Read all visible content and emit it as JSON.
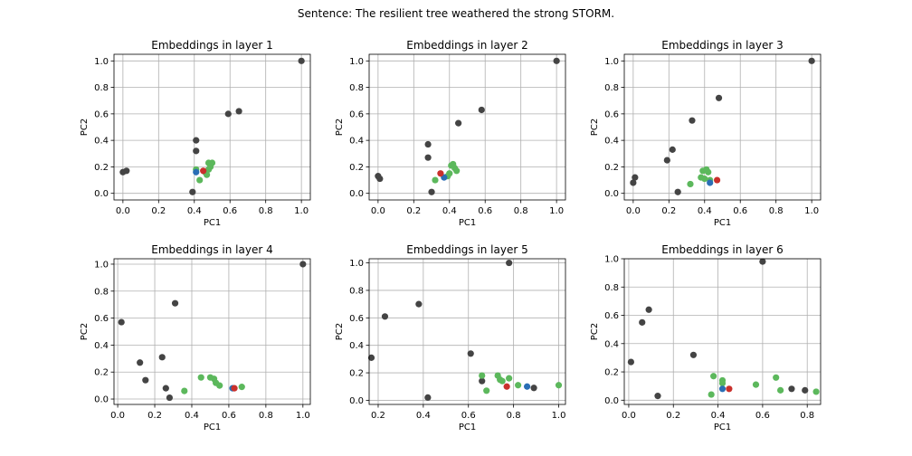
{
  "figure_title": "Sentence: The resilient tree weathered the strong STORM.",
  "colors": {
    "other": "#444444",
    "adjective": "#5cb85c",
    "focus": "#c9302c",
    "reference": "#2a6eb5"
  },
  "chart_data": [
    {
      "type": "scatter",
      "title": "Embeddings in layer 1",
      "xlabel": "PC1",
      "ylabel": "PC2",
      "xlim": [
        -0.05,
        1.05
      ],
      "ylim": [
        -0.05,
        1.05
      ],
      "xticks": [
        0.0,
        0.2,
        0.4,
        0.6,
        0.8,
        1.0
      ],
      "yticks": [
        0.0,
        0.2,
        0.4,
        0.6,
        0.8,
        1.0
      ],
      "grid": true,
      "series": [
        {
          "group": "other",
          "points": [
            [
              0.0,
              0.16
            ],
            [
              0.02,
              0.17
            ],
            [
              0.39,
              0.01
            ],
            [
              0.41,
              0.4
            ],
            [
              0.41,
              0.32
            ],
            [
              0.59,
              0.6
            ],
            [
              0.65,
              0.62
            ],
            [
              1.0,
              1.0
            ]
          ]
        },
        {
          "group": "adjective",
          "points": [
            [
              0.41,
              0.18
            ],
            [
              0.43,
              0.1
            ],
            [
              0.46,
              0.16
            ],
            [
              0.47,
              0.14
            ],
            [
              0.48,
              0.18
            ],
            [
              0.49,
              0.2
            ],
            [
              0.48,
              0.23
            ],
            [
              0.5,
              0.23
            ]
          ]
        },
        {
          "group": "reference",
          "points": [
            [
              0.41,
              0.16
            ]
          ]
        },
        {
          "group": "focus",
          "points": [
            [
              0.45,
              0.17
            ]
          ]
        }
      ]
    },
    {
      "type": "scatter",
      "title": "Embeddings in layer 2",
      "xlabel": "PC1",
      "ylabel": "PC2",
      "xlim": [
        -0.05,
        1.05
      ],
      "ylim": [
        -0.05,
        1.05
      ],
      "xticks": [
        0.0,
        0.2,
        0.4,
        0.6,
        0.8,
        1.0
      ],
      "yticks": [
        0.0,
        0.2,
        0.4,
        0.6,
        0.8,
        1.0
      ],
      "grid": true,
      "series": [
        {
          "group": "other",
          "points": [
            [
              0.0,
              0.13
            ],
            [
              0.01,
              0.11
            ],
            [
              0.28,
              0.27
            ],
            [
              0.28,
              0.37
            ],
            [
              0.3,
              0.01
            ],
            [
              0.45,
              0.53
            ],
            [
              0.58,
              0.63
            ],
            [
              1.0,
              1.0
            ]
          ]
        },
        {
          "group": "adjective",
          "points": [
            [
              0.32,
              0.1
            ],
            [
              0.39,
              0.13
            ],
            [
              0.4,
              0.15
            ],
            [
              0.41,
              0.21
            ],
            [
              0.42,
              0.22
            ],
            [
              0.43,
              0.19
            ],
            [
              0.44,
              0.17
            ]
          ]
        },
        {
          "group": "reference",
          "points": [
            [
              0.37,
              0.12
            ]
          ]
        },
        {
          "group": "focus",
          "points": [
            [
              0.35,
              0.15
            ]
          ]
        }
      ]
    },
    {
      "type": "scatter",
      "title": "Embeddings in layer 3",
      "xlabel": "PC1",
      "ylabel": "PC2",
      "xlim": [
        -0.05,
        1.05
      ],
      "ylim": [
        -0.05,
        1.05
      ],
      "xticks": [
        0.0,
        0.2,
        0.4,
        0.6,
        0.8,
        1.0
      ],
      "yticks": [
        0.0,
        0.2,
        0.4,
        0.6,
        0.8,
        1.0
      ],
      "grid": true,
      "series": [
        {
          "group": "other",
          "points": [
            [
              0.0,
              0.08
            ],
            [
              0.01,
              0.12
            ],
            [
              0.19,
              0.25
            ],
            [
              0.22,
              0.33
            ],
            [
              0.25,
              0.01
            ],
            [
              0.33,
              0.55
            ],
            [
              0.48,
              0.72
            ],
            [
              1.0,
              1.0
            ]
          ]
        },
        {
          "group": "adjective",
          "points": [
            [
              0.32,
              0.07
            ],
            [
              0.38,
              0.12
            ],
            [
              0.39,
              0.17
            ],
            [
              0.4,
              0.11
            ],
            [
              0.41,
              0.18
            ],
            [
              0.42,
              0.16
            ],
            [
              0.43,
              0.1
            ]
          ]
        },
        {
          "group": "reference",
          "points": [
            [
              0.43,
              0.08
            ]
          ]
        },
        {
          "group": "focus",
          "points": [
            [
              0.47,
              0.1
            ]
          ]
        }
      ]
    },
    {
      "type": "scatter",
      "title": "Embeddings in layer 4",
      "xlabel": "PC1",
      "ylabel": "PC2",
      "xlim": [
        -0.02,
        1.04
      ],
      "ylim": [
        -0.04,
        1.04
      ],
      "xticks": [
        0.0,
        0.2,
        0.4,
        0.6,
        0.8,
        1.0
      ],
      "yticks": [
        0.0,
        0.2,
        0.4,
        0.6,
        0.8,
        1.0
      ],
      "grid": true,
      "series": [
        {
          "group": "other",
          "points": [
            [
              0.02,
              0.57
            ],
            [
              0.12,
              0.27
            ],
            [
              0.15,
              0.14
            ],
            [
              0.24,
              0.31
            ],
            [
              0.26,
              0.08
            ],
            [
              0.28,
              0.01
            ],
            [
              0.31,
              0.71
            ],
            [
              1.0,
              1.0
            ]
          ]
        },
        {
          "group": "adjective",
          "points": [
            [
              0.36,
              0.06
            ],
            [
              0.45,
              0.16
            ],
            [
              0.5,
              0.16
            ],
            [
              0.52,
              0.15
            ],
            [
              0.53,
              0.12
            ],
            [
              0.55,
              0.1
            ],
            [
              0.67,
              0.09
            ]
          ]
        },
        {
          "group": "reference",
          "points": [
            [
              0.62,
              0.08
            ]
          ]
        },
        {
          "group": "focus",
          "points": [
            [
              0.63,
              0.08
            ]
          ]
        }
      ]
    },
    {
      "type": "scatter",
      "title": "Embeddings in layer 5",
      "xlabel": "PC1",
      "ylabel": "PC2",
      "xlim": [
        0.16,
        1.03
      ],
      "ylim": [
        -0.03,
        1.03
      ],
      "xticks": [
        0.2,
        0.4,
        0.6,
        0.8,
        1.0
      ],
      "yticks": [
        0.0,
        0.2,
        0.4,
        0.6,
        0.8,
        1.0
      ],
      "grid": true,
      "series": [
        {
          "group": "other",
          "points": [
            [
              0.17,
              0.31
            ],
            [
              0.23,
              0.61
            ],
            [
              0.38,
              0.7
            ],
            [
              0.42,
              0.02
            ],
            [
              0.61,
              0.34
            ],
            [
              0.66,
              0.14
            ],
            [
              0.78,
              1.0
            ],
            [
              0.89,
              0.09
            ]
          ]
        },
        {
          "group": "adjective",
          "points": [
            [
              0.66,
              0.18
            ],
            [
              0.68,
              0.07
            ],
            [
              0.73,
              0.18
            ],
            [
              0.74,
              0.15
            ],
            [
              0.75,
              0.14
            ],
            [
              0.78,
              0.16
            ],
            [
              0.82,
              0.11
            ],
            [
              1.0,
              0.11
            ]
          ]
        },
        {
          "group": "reference",
          "points": [
            [
              0.86,
              0.1
            ]
          ]
        },
        {
          "group": "focus",
          "points": [
            [
              0.77,
              0.1
            ]
          ]
        }
      ]
    },
    {
      "type": "scatter",
      "title": "Embeddings in layer 6",
      "xlabel": "PC1",
      "ylabel": "PC2",
      "xlim": [
        -0.02,
        0.86
      ],
      "ylim": [
        -0.03,
        1.0
      ],
      "xticks": [
        0.0,
        0.2,
        0.4,
        0.6,
        0.8
      ],
      "yticks": [
        0.0,
        0.2,
        0.4,
        0.6,
        0.8,
        1.0
      ],
      "grid": true,
      "series": [
        {
          "group": "other",
          "points": [
            [
              0.01,
              0.27
            ],
            [
              0.06,
              0.55
            ],
            [
              0.09,
              0.64
            ],
            [
              0.13,
              0.03
            ],
            [
              0.29,
              0.32
            ],
            [
              0.6,
              0.98
            ],
            [
              0.73,
              0.08
            ],
            [
              0.79,
              0.07
            ]
          ]
        },
        {
          "group": "adjective",
          "points": [
            [
              0.37,
              0.04
            ],
            [
              0.38,
              0.17
            ],
            [
              0.42,
              0.14
            ],
            [
              0.42,
              0.12
            ],
            [
              0.57,
              0.11
            ],
            [
              0.66,
              0.16
            ],
            [
              0.68,
              0.07
            ],
            [
              0.84,
              0.06
            ]
          ]
        },
        {
          "group": "reference",
          "points": [
            [
              0.42,
              0.08
            ]
          ]
        },
        {
          "group": "focus",
          "points": [
            [
              0.45,
              0.08
            ]
          ]
        }
      ]
    }
  ]
}
